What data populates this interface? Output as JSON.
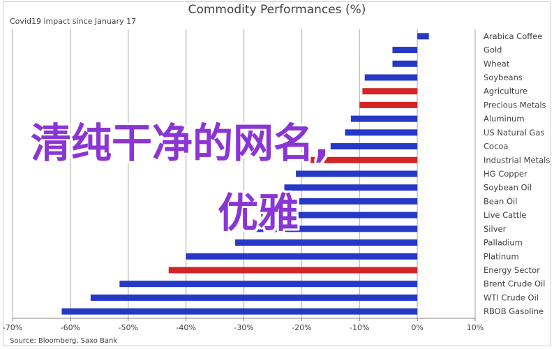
{
  "chart_data": {
    "type": "bar",
    "orientation": "horizontal",
    "title": "Commodity Performances (%)",
    "subtitle": "Covid19 impact since January 17",
    "source": "Source: Bloomberg, Saxo Bank",
    "xlim": [
      -70,
      10
    ],
    "xticks": [
      -70,
      -60,
      -50,
      -40,
      -30,
      -20,
      -10,
      0,
      10
    ],
    "xtick_labels": [
      "-70%",
      "-60%",
      "-50%",
      "-40%",
      "-30%",
      "-20%",
      "-10%",
      "0%",
      "10%"
    ],
    "grid": true,
    "categories": [
      "Arabica Coffee",
      "Gold",
      "Wheat",
      "Soybeans",
      "Agriculture",
      "Precious Metals",
      "Aluminum",
      "US Natural Gas",
      "Cocoa",
      "Industrial Metals",
      "HG Copper",
      "Soybean Oil",
      "Bean Oil",
      "Live Cattle",
      "Silver",
      "Palladium",
      "Platinum",
      "Energy Sector",
      "Brent Crude Oil",
      "WTI Crude Oil",
      "RBOB Gasoline"
    ],
    "values": [
      2.0,
      -4.3,
      -4.3,
      -9.1,
      -9.5,
      -10.0,
      -11.5,
      -12.5,
      -15.0,
      -18.5,
      -21.0,
      -23.0,
      -25.5,
      -27.0,
      -29.0,
      -31.5,
      -40.0,
      -43.0,
      -51.5,
      -56.5,
      -61.5
    ],
    "highlighted": [
      "Agriculture",
      "Precious Metals",
      "Industrial Metals",
      "Energy Sector"
    ],
    "colors": {
      "bar": "#2539c6",
      "highlight": "#d42525",
      "grid": "#c4c4c4",
      "axis": "#808080",
      "text": "#404040"
    }
  },
  "overlay": {
    "lines": [
      "清纯干净的网名,",
      "优雅"
    ],
    "color": "#8a35d4"
  }
}
